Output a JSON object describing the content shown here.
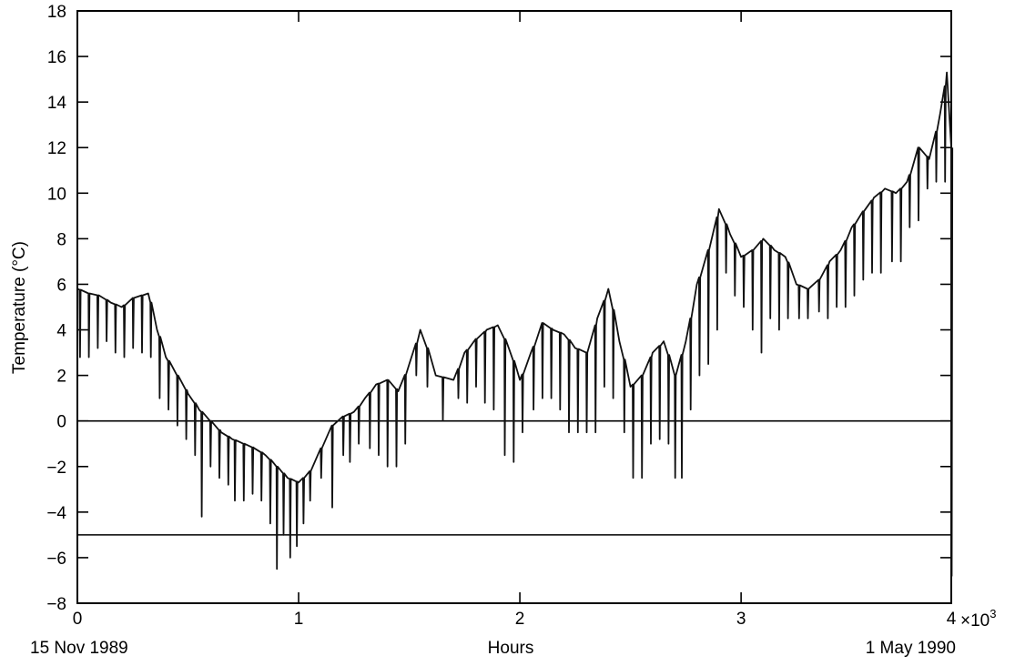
{
  "chart_data": {
    "type": "line",
    "title": "",
    "xlabel": "Hours",
    "ylabel": "Temperature (°C)",
    "x_multiplier_label": "×10",
    "x_multiplier_exponent": "3",
    "xlim": [
      0,
      3950
    ],
    "ylim": [
      -8,
      18
    ],
    "x_ticks": [
      0,
      1000,
      2000,
      3000,
      4000
    ],
    "x_tick_labels": [
      "0",
      "1",
      "2",
      "3",
      "4"
    ],
    "y_ticks": [
      -8,
      -6,
      -4,
      -2,
      0,
      2,
      4,
      6,
      8,
      10,
      12,
      14,
      16,
      18
    ],
    "y_tick_labels": [
      "−8",
      "−6",
      "−4",
      "−2",
      "0",
      "2",
      "4",
      "6",
      "8",
      "10",
      "12",
      "14",
      "16",
      "18"
    ],
    "reference_lines": [
      0,
      -5
    ],
    "start_date_label": "15 Nov 1989",
    "end_date_label": "1 May 1990",
    "grid": false,
    "legend": "none",
    "line_color": "#111111",
    "series": [
      {
        "baseline_points": [
          [
            0,
            5.8
          ],
          [
            50,
            5.6
          ],
          [
            100,
            5.5
          ],
          [
            150,
            5.2
          ],
          [
            200,
            5.0
          ],
          [
            250,
            5.4
          ],
          [
            320,
            5.6
          ],
          [
            360,
            4.0
          ],
          [
            400,
            2.8
          ],
          [
            450,
            2.0
          ],
          [
            500,
            1.2
          ],
          [
            550,
            0.5
          ],
          [
            600,
            0.0
          ],
          [
            650,
            -0.5
          ],
          [
            700,
            -0.8
          ],
          [
            750,
            -1.0
          ],
          [
            800,
            -1.2
          ],
          [
            850,
            -1.5
          ],
          [
            900,
            -2.0
          ],
          [
            950,
            -2.5
          ],
          [
            1000,
            -2.7
          ],
          [
            1050,
            -2.2
          ],
          [
            1100,
            -1.2
          ],
          [
            1150,
            -0.2
          ],
          [
            1200,
            0.2
          ],
          [
            1250,
            0.4
          ],
          [
            1300,
            1.0
          ],
          [
            1350,
            1.6
          ],
          [
            1400,
            1.8
          ],
          [
            1450,
            1.3
          ],
          [
            1500,
            2.5
          ],
          [
            1550,
            4.0
          ],
          [
            1580,
            3.2
          ],
          [
            1620,
            2.0
          ],
          [
            1700,
            1.8
          ],
          [
            1750,
            3.0
          ],
          [
            1800,
            3.6
          ],
          [
            1850,
            4.0
          ],
          [
            1900,
            4.2
          ],
          [
            1950,
            3.2
          ],
          [
            2000,
            1.8
          ],
          [
            2050,
            3.0
          ],
          [
            2100,
            4.3
          ],
          [
            2150,
            4.0
          ],
          [
            2200,
            3.8
          ],
          [
            2250,
            3.2
          ],
          [
            2300,
            3.0
          ],
          [
            2350,
            4.5
          ],
          [
            2400,
            5.8
          ],
          [
            2450,
            3.5
          ],
          [
            2500,
            1.5
          ],
          [
            2550,
            2.0
          ],
          [
            2600,
            3.0
          ],
          [
            2650,
            3.5
          ],
          [
            2700,
            2.0
          ],
          [
            2750,
            3.5
          ],
          [
            2800,
            6.0
          ],
          [
            2850,
            7.5
          ],
          [
            2900,
            9.3
          ],
          [
            2950,
            8.2
          ],
          [
            3000,
            7.2
          ],
          [
            3050,
            7.5
          ],
          [
            3100,
            8.0
          ],
          [
            3150,
            7.5
          ],
          [
            3200,
            7.2
          ],
          [
            3250,
            6.0
          ],
          [
            3300,
            5.8
          ],
          [
            3350,
            6.2
          ],
          [
            3400,
            7.0
          ],
          [
            3450,
            7.5
          ],
          [
            3500,
            8.5
          ],
          [
            3550,
            9.2
          ],
          [
            3600,
            9.8
          ],
          [
            3650,
            10.2
          ],
          [
            3700,
            10.0
          ],
          [
            3750,
            10.5
          ],
          [
            3800,
            12.0
          ],
          [
            3850,
            11.5
          ],
          [
            3900,
            13.5
          ],
          [
            3930,
            15.3
          ],
          [
            3950,
            12.0
          ]
        ],
        "daily_dips": [
          [
            10,
            2.8
          ],
          [
            50,
            2.8
          ],
          [
            90,
            3.2
          ],
          [
            130,
            3.5
          ],
          [
            170,
            3.0
          ],
          [
            210,
            2.8
          ],
          [
            250,
            3.2
          ],
          [
            290,
            3.0
          ],
          [
            330,
            2.8
          ],
          [
            370,
            1.0
          ],
          [
            410,
            0.5
          ],
          [
            450,
            -0.2
          ],
          [
            490,
            -0.8
          ],
          [
            530,
            -1.5
          ],
          [
            560,
            -4.2
          ],
          [
            600,
            -2.0
          ],
          [
            640,
            -2.5
          ],
          [
            680,
            -2.8
          ],
          [
            710,
            -3.5
          ],
          [
            750,
            -3.5
          ],
          [
            790,
            -3.2
          ],
          [
            830,
            -3.5
          ],
          [
            870,
            -4.5
          ],
          [
            900,
            -6.5
          ],
          [
            930,
            -5.0
          ],
          [
            960,
            -6.0
          ],
          [
            990,
            -5.5
          ],
          [
            1020,
            -4.5
          ],
          [
            1050,
            -3.5
          ],
          [
            1100,
            -2.5
          ],
          [
            1150,
            -3.8
          ],
          [
            1200,
            -1.5
          ],
          [
            1230,
            -1.8
          ],
          [
            1270,
            -1.0
          ],
          [
            1320,
            -1.2
          ],
          [
            1360,
            -1.5
          ],
          [
            1400,
            -2.0
          ],
          [
            1440,
            -2.0
          ],
          [
            1480,
            -1.0
          ],
          [
            1530,
            2.0
          ],
          [
            1580,
            1.5
          ],
          [
            1650,
            0.0
          ],
          [
            1720,
            1.0
          ],
          [
            1760,
            0.8
          ],
          [
            1800,
            1.5
          ],
          [
            1840,
            0.8
          ],
          [
            1880,
            0.5
          ],
          [
            1930,
            -1.5
          ],
          [
            1970,
            -1.8
          ],
          [
            2010,
            -0.5
          ],
          [
            2060,
            0.5
          ],
          [
            2100,
            1.0
          ],
          [
            2140,
            1.0
          ],
          [
            2180,
            0.5
          ],
          [
            2220,
            -0.5
          ],
          [
            2260,
            -0.5
          ],
          [
            2300,
            -0.5
          ],
          [
            2340,
            -0.5
          ],
          [
            2380,
            1.5
          ],
          [
            2420,
            1.0
          ],
          [
            2470,
            -0.5
          ],
          [
            2510,
            -2.5
          ],
          [
            2550,
            -2.5
          ],
          [
            2590,
            -1.0
          ],
          [
            2630,
            -0.8
          ],
          [
            2670,
            -1.0
          ],
          [
            2700,
            -2.5
          ],
          [
            2730,
            -2.5
          ],
          [
            2770,
            0.5
          ],
          [
            2810,
            2.0
          ],
          [
            2850,
            2.5
          ],
          [
            2890,
            4.0
          ],
          [
            2930,
            6.5
          ],
          [
            2970,
            5.5
          ],
          [
            3010,
            5.0
          ],
          [
            3050,
            4.0
          ],
          [
            3090,
            3.0
          ],
          [
            3130,
            4.5
          ],
          [
            3170,
            4.0
          ],
          [
            3210,
            4.5
          ],
          [
            3260,
            4.5
          ],
          [
            3300,
            4.5
          ],
          [
            3350,
            4.8
          ],
          [
            3390,
            4.5
          ],
          [
            3430,
            5.0
          ],
          [
            3470,
            5.0
          ],
          [
            3510,
            5.5
          ],
          [
            3550,
            6.2
          ],
          [
            3590,
            6.5
          ],
          [
            3630,
            6.5
          ],
          [
            3680,
            7.0
          ],
          [
            3720,
            7.0
          ],
          [
            3760,
            8.5
          ],
          [
            3800,
            8.8
          ],
          [
            3840,
            10.2
          ],
          [
            3880,
            10.5
          ],
          [
            3920,
            10.5
          ],
          [
            3950,
            -6.8
          ]
        ]
      }
    ]
  }
}
